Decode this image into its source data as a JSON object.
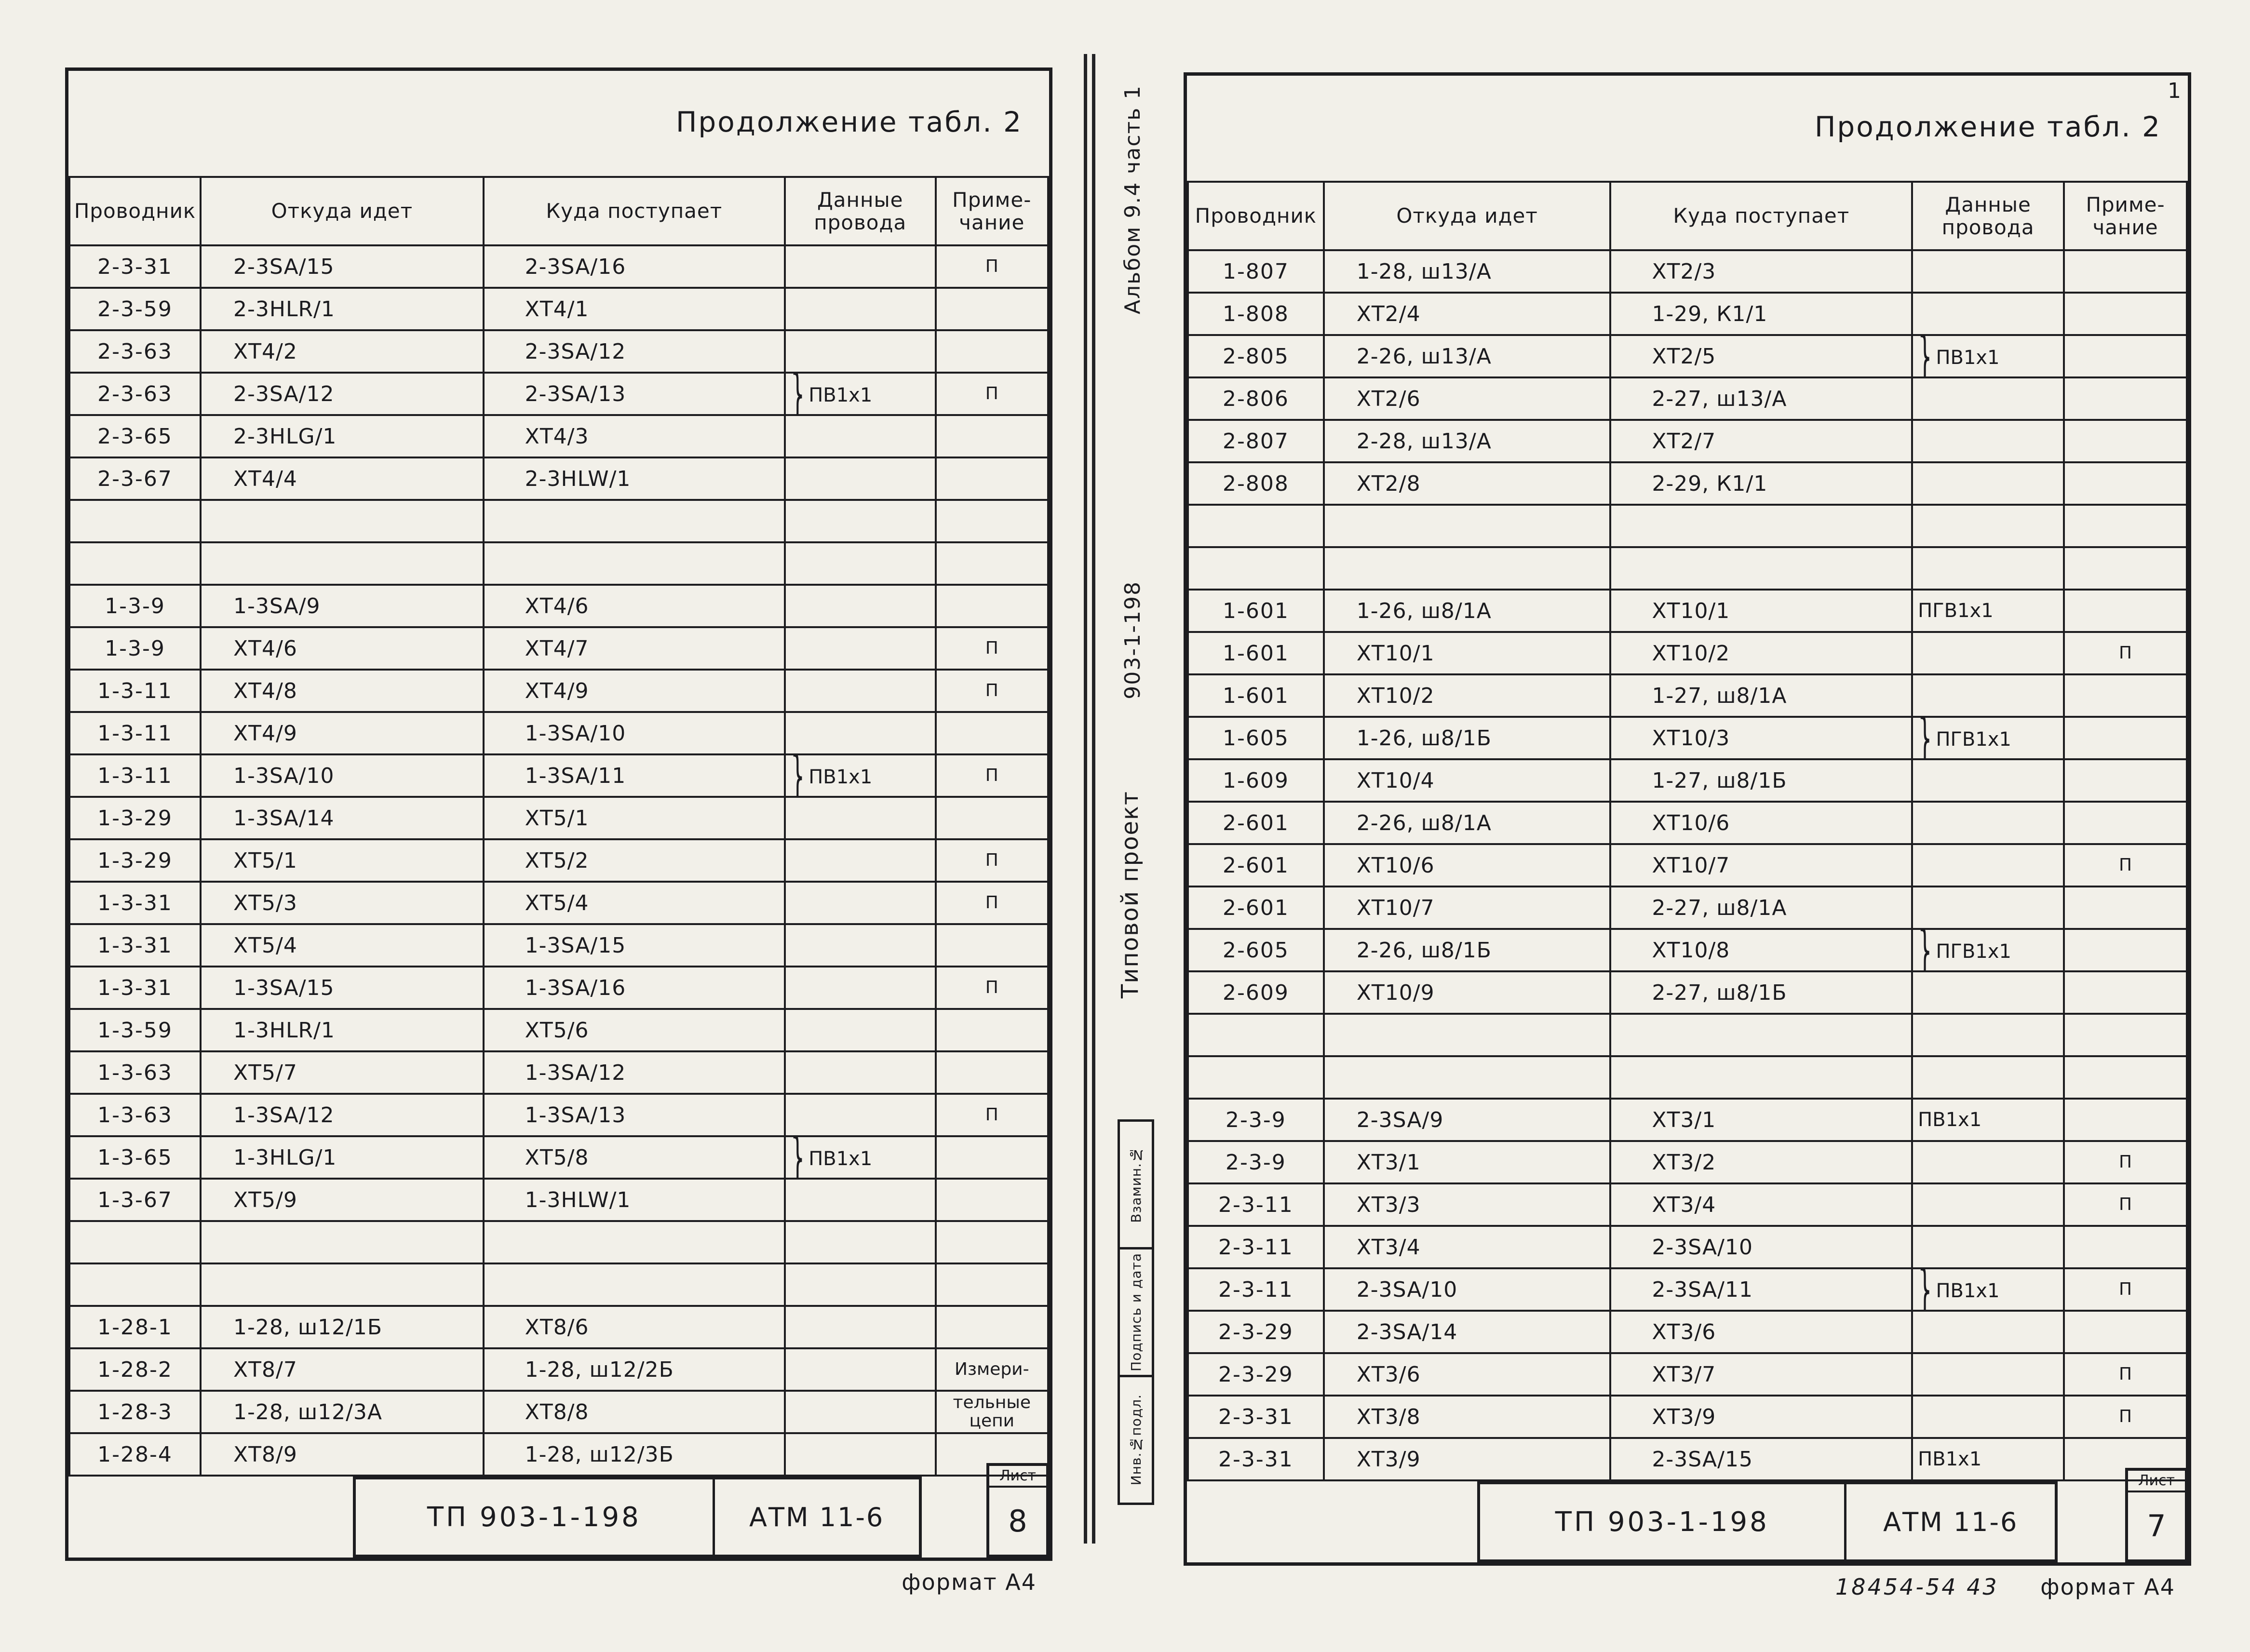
{
  "colors": {
    "ink": "#1d1d20",
    "paper": "#f2f0e9"
  },
  "glyphs": {
    "brace": "}"
  },
  "margin": {
    "album": "Альбом 9.4 часть 1",
    "code": "903-1-198",
    "project": "Типовой проект",
    "stamp_cells": [
      "Взамин.№",
      "Подпись и дата",
      "Инв.№подл."
    ]
  },
  "pages": [
    {
      "title": "Продолжение табл. 2",
      "columns": [
        "Проводник",
        "Откуда идет",
        "Куда поступает",
        "Данные\nпровода",
        "Приме-\nчание"
      ],
      "rows": [
        {
          "conductor": "2-3-31",
          "from": "2-3SA/15",
          "to": "2-3SA/16",
          "wire": "",
          "note": "П"
        },
        {
          "conductor": "2-3-59",
          "from": "2-3HLR/1",
          "to": "ХТ4/1",
          "wire": "",
          "note": ""
        },
        {
          "conductor": "2-3-63",
          "from": "ХТ4/2",
          "to": "2-3SA/12",
          "wire": "",
          "note": ""
        },
        {
          "conductor": "2-3-63",
          "from": "2-3SA/12",
          "to": "2-3SA/13",
          "wire": "ПВ1х1",
          "brace": true,
          "note": "П"
        },
        {
          "conductor": "2-3-65",
          "from": "2-3HLG/1",
          "to": "ХТ4/3",
          "wire": "",
          "note": ""
        },
        {
          "conductor": "2-3-67",
          "from": "ХТ4/4",
          "to": "2-3HLW/1",
          "wire": "",
          "note": ""
        },
        {
          "blank": true
        },
        {
          "blank": true
        },
        {
          "conductor": "1-3-9",
          "from": "1-3SA/9",
          "to": "ХТ4/6",
          "wire": "",
          "note": ""
        },
        {
          "conductor": "1-3-9",
          "from": "ХТ4/6",
          "to": "ХТ4/7",
          "wire": "",
          "note": "П"
        },
        {
          "conductor": "1-3-11",
          "from": "ХТ4/8",
          "to": "ХТ4/9",
          "wire": "",
          "note": "П"
        },
        {
          "conductor": "1-3-11",
          "from": "ХТ4/9",
          "to": "1-3SA/10",
          "wire": "",
          "note": ""
        },
        {
          "conductor": "1-3-11",
          "from": "1-3SA/10",
          "to": "1-3SA/11",
          "wire": "ПВ1х1",
          "brace": true,
          "note": "П"
        },
        {
          "conductor": "1-3-29",
          "from": "1-3SA/14",
          "to": "ХТ5/1",
          "wire": "",
          "note": ""
        },
        {
          "conductor": "1-3-29",
          "from": "ХТ5/1",
          "to": "ХТ5/2",
          "wire": "",
          "note": "П"
        },
        {
          "conductor": "1-3-31",
          "from": "ХТ5/3",
          "to": "ХТ5/4",
          "wire": "",
          "note": "П"
        },
        {
          "conductor": "1-3-31",
          "from": "ХТ5/4",
          "to": "1-3SA/15",
          "wire": "",
          "note": ""
        },
        {
          "conductor": "1-3-31",
          "from": "1-3SA/15",
          "to": "1-3SA/16",
          "wire": "",
          "note": "П"
        },
        {
          "conductor": "1-3-59",
          "from": "1-3HLR/1",
          "to": "ХТ5/6",
          "wire": "",
          "note": ""
        },
        {
          "conductor": "1-3-63",
          "from": "ХТ5/7",
          "to": "1-3SA/12",
          "wire": "",
          "note": ""
        },
        {
          "conductor": "1-3-63",
          "from": "1-3SA/12",
          "to": "1-3SA/13",
          "wire": "",
          "note": "П"
        },
        {
          "conductor": "1-3-65",
          "from": "1-3HLG/1",
          "to": "ХТ5/8",
          "wire": "ПВ1х1",
          "brace": true,
          "note": ""
        },
        {
          "conductor": "1-3-67",
          "from": "ХТ5/9",
          "to": "1-3HLW/1",
          "wire": "",
          "note": ""
        },
        {
          "blank": true
        },
        {
          "blank": true
        },
        {
          "conductor": "1-28-1",
          "from": "1-28, ш12/1Б",
          "to": "ХТ8/6",
          "wire": "",
          "note": ""
        },
        {
          "conductor": "1-28-2",
          "from": "ХТ8/7",
          "to": "1-28, ш12/2Б",
          "wire": "",
          "note": "Измери-"
        },
        {
          "conductor": "1-28-3",
          "from": "1-28, ш12/3А",
          "to": "ХТ8/8",
          "wire": "",
          "note": "тельные цепи"
        },
        {
          "conductor": "1-28-4",
          "from": "ХТ8/9",
          "to": "1-28, ш12/3Б",
          "wire": "",
          "note": ""
        }
      ],
      "footer": {
        "doc": "ТП 903-1-198",
        "code": "АТМ 11-6",
        "sheet_label": "Лист",
        "sheet": "8",
        "format": "формат А4"
      }
    },
    {
      "title": "Продолжение табл. 2",
      "corner_mark": "1",
      "columns": [
        "Проводник",
        "Откуда идет",
        "Куда поступает",
        "Данные\nпровода",
        "Приме-\nчание"
      ],
      "rows": [
        {
          "conductor": "1-807",
          "from": "1-28, ш13/А",
          "to": "ХТ2/3",
          "wire": "",
          "note": ""
        },
        {
          "conductor": "1-808",
          "from": "ХТ2/4",
          "to": "1-29, К1/1",
          "wire": "",
          "note": ""
        },
        {
          "conductor": "2-805",
          "from": "2-26, ш13/А",
          "to": "ХТ2/5",
          "wire": "ПВ1х1",
          "brace": true,
          "note": ""
        },
        {
          "conductor": "2-806",
          "from": "ХТ2/6",
          "to": "2-27, ш13/А",
          "wire": "",
          "note": ""
        },
        {
          "conductor": "2-807",
          "from": "2-28, ш13/А",
          "to": "ХТ2/7",
          "wire": "",
          "note": ""
        },
        {
          "conductor": "2-808",
          "from": "ХТ2/8",
          "to": "2-29, К1/1",
          "wire": "",
          "note": ""
        },
        {
          "blank": true
        },
        {
          "blank": true
        },
        {
          "conductor": "1-601",
          "from": "1-26, ш8/1А",
          "to": "ХТ10/1",
          "wire": "ПГВ1х1",
          "note": ""
        },
        {
          "conductor": "1-601",
          "from": "ХТ10/1",
          "to": "ХТ10/2",
          "wire": "",
          "note": "П"
        },
        {
          "conductor": "1-601",
          "from": "ХТ10/2",
          "to": "1-27, ш8/1А",
          "wire": "",
          "note": ""
        },
        {
          "conductor": "1-605",
          "from": "1-26, ш8/1Б",
          "to": "ХТ10/3",
          "wire": "ПГВ1х1",
          "brace": true,
          "note": ""
        },
        {
          "conductor": "1-609",
          "from": "ХТ10/4",
          "to": "1-27, ш8/1Б",
          "wire": "",
          "note": ""
        },
        {
          "conductor": "2-601",
          "from": "2-26, ш8/1А",
          "to": "ХТ10/6",
          "wire": "",
          "note": ""
        },
        {
          "conductor": "2-601",
          "from": "ХТ10/6",
          "to": "ХТ10/7",
          "wire": "",
          "note": "П"
        },
        {
          "conductor": "2-601",
          "from": "ХТ10/7",
          "to": "2-27, ш8/1А",
          "wire": "",
          "note": ""
        },
        {
          "conductor": "2-605",
          "from": "2-26, ш8/1Б",
          "to": "ХТ10/8",
          "wire": "ПГВ1х1",
          "brace": true,
          "note": ""
        },
        {
          "conductor": "2-609",
          "from": "ХТ10/9",
          "to": "2-27, ш8/1Б",
          "wire": "",
          "note": ""
        },
        {
          "blank": true
        },
        {
          "blank": true
        },
        {
          "conductor": "2-3-9",
          "from": "2-3SA/9",
          "to": "ХТ3/1",
          "wire": "ПВ1х1",
          "note": ""
        },
        {
          "conductor": "2-3-9",
          "from": "ХТ3/1",
          "to": "ХТ3/2",
          "wire": "",
          "note": "П"
        },
        {
          "conductor": "2-3-11",
          "from": "ХТ3/3",
          "to": "ХТ3/4",
          "wire": "",
          "note": "П"
        },
        {
          "conductor": "2-3-11",
          "from": "ХТ3/4",
          "to": "2-3SA/10",
          "wire": "",
          "note": ""
        },
        {
          "conductor": "2-3-11",
          "from": "2-3SA/10",
          "to": "2-3SA/11",
          "wire": "ПВ1х1",
          "brace": true,
          "note": "П"
        },
        {
          "conductor": "2-3-29",
          "from": "2-3SA/14",
          "to": "ХТ3/6",
          "wire": "",
          "note": ""
        },
        {
          "conductor": "2-3-29",
          "from": "ХТ3/6",
          "to": "ХТ3/7",
          "wire": "",
          "note": "П"
        },
        {
          "conductor": "2-3-31",
          "from": "ХТ3/8",
          "to": "ХТ3/9",
          "wire": "",
          "note": "П"
        },
        {
          "conductor": "2-3-31",
          "from": "ХТ3/9",
          "to": "2-3SA/15",
          "wire": "ПВ1х1",
          "note": ""
        }
      ],
      "footer": {
        "doc": "ТП 903-1-198",
        "code": "АТМ 11-6",
        "sheet_label": "Лист",
        "sheet": "7",
        "format": "формат А4",
        "archive": "18454-54   43"
      }
    }
  ]
}
